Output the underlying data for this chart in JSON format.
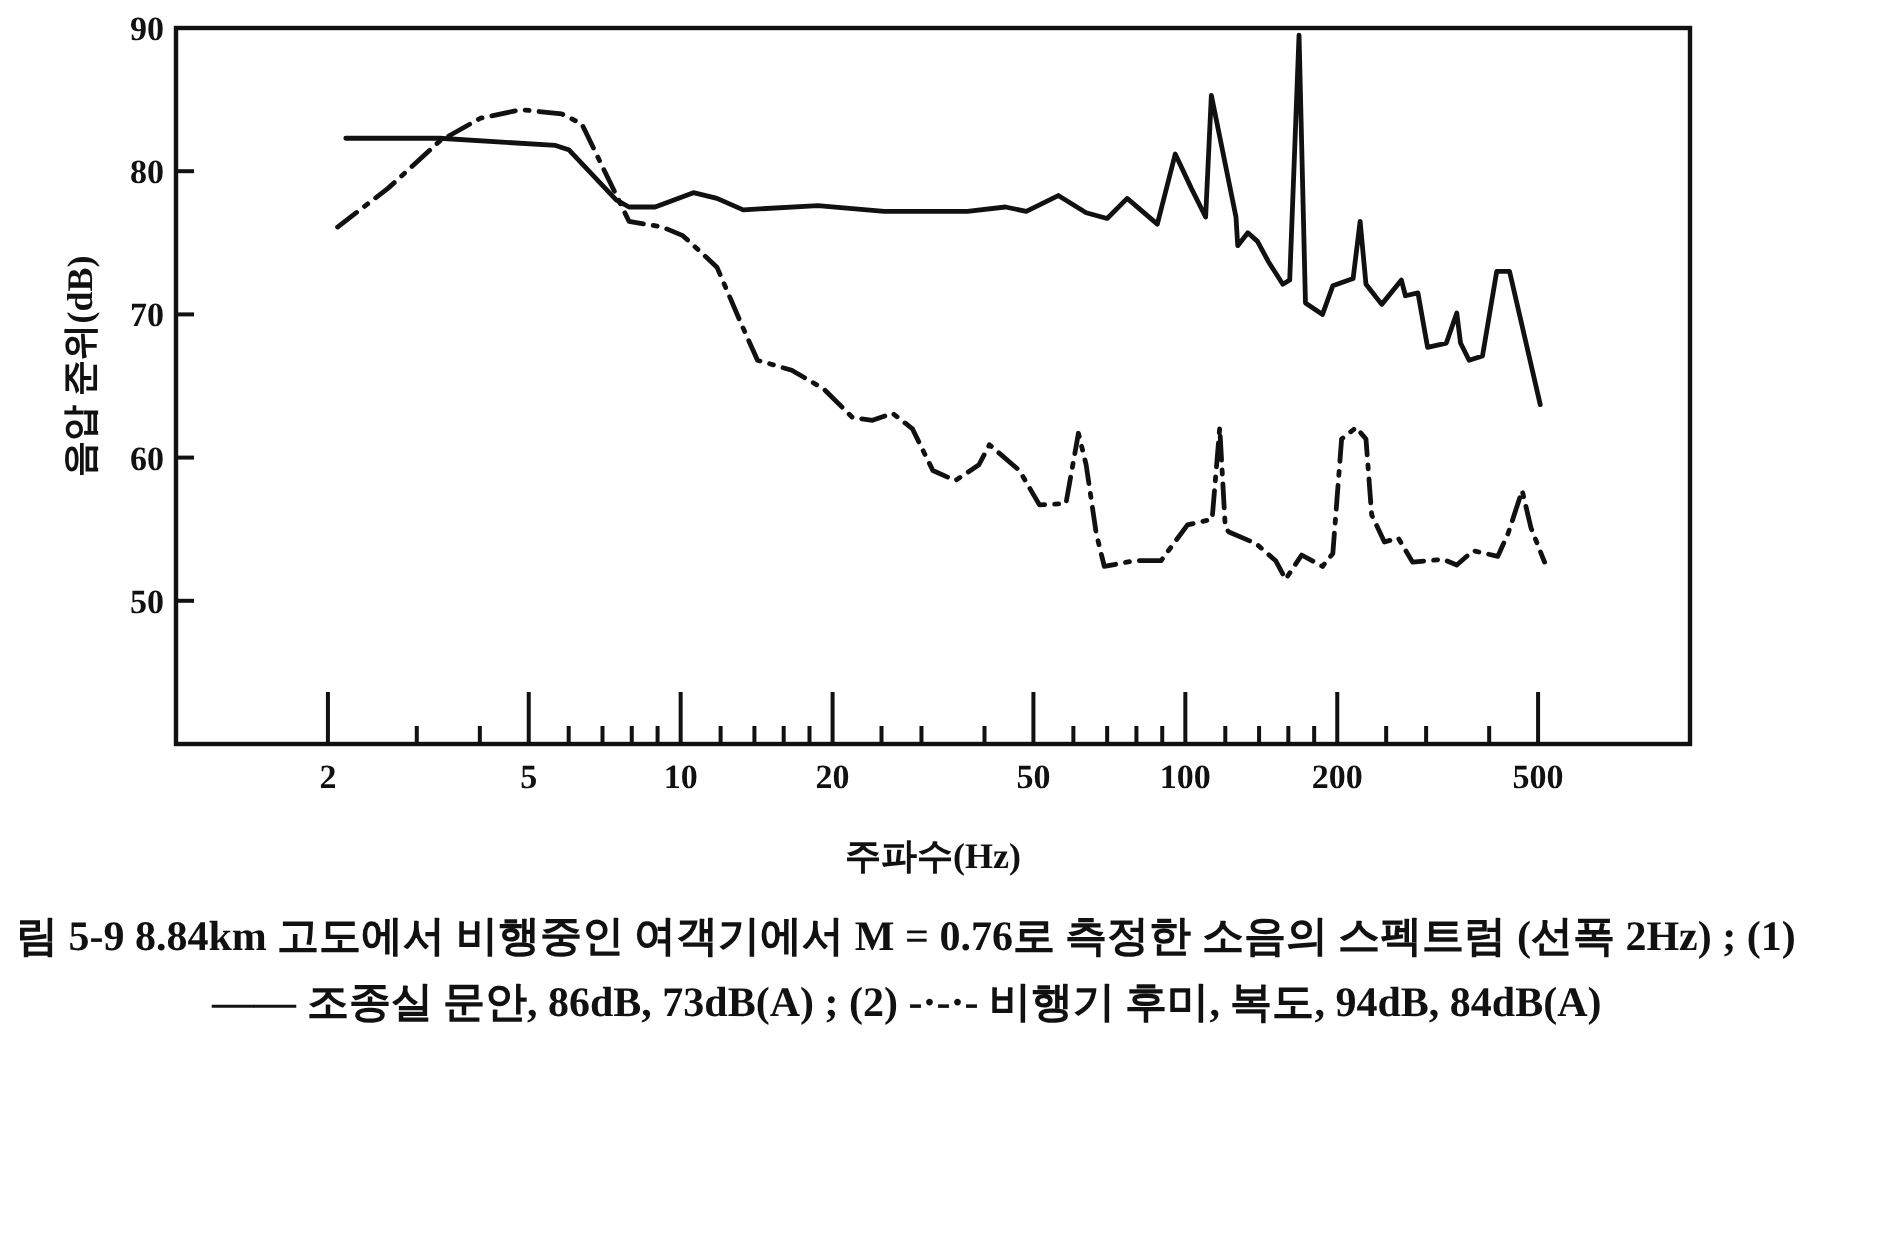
{
  "chart_data": {
    "type": "line",
    "xlabel": "주파수(Hz)",
    "ylabel": "음압 준위(dB)",
    "log": "x",
    "xlim": [
      1,
      1000
    ],
    "ylim": [
      40,
      90
    ],
    "xticks": [
      2,
      {
        "value": 3,
        "label": null
      },
      {
        "value": 4,
        "label": null
      },
      5,
      {
        "value": 6,
        "label": null
      },
      {
        "value": 7,
        "label": null
      },
      {
        "value": 8,
        "label": null
      },
      {
        "value": 9,
        "label": null
      },
      10,
      {
        "value": 12,
        "label": null
      },
      {
        "value": 14,
        "label": null
      },
      {
        "value": 16,
        "label": null
      },
      {
        "value": 18,
        "label": null
      },
      20,
      {
        "value": 25,
        "label": null
      },
      {
        "value": 30,
        "label": null
      },
      {
        "value": 40,
        "label": null
      },
      50,
      {
        "value": 60,
        "label": null
      },
      {
        "value": 70,
        "label": null
      },
      {
        "value": 80,
        "label": null
      },
      {
        "value": 90,
        "label": null
      },
      100,
      {
        "value": 120,
        "label": null
      },
      {
        "value": 140,
        "label": null
      },
      {
        "value": 160,
        "label": null
      },
      {
        "value": 180,
        "label": null
      },
      200,
      {
        "value": 250,
        "label": null
      },
      {
        "value": 300,
        "label": null
      },
      {
        "value": 400,
        "label": null
      },
      500
    ],
    "yticks": [
      50,
      60,
      70,
      80,
      90
    ],
    "grid": false,
    "series": [
      {
        "color": "#111111",
        "line_style": "solid",
        "x": [
          2.17,
          3.33,
          5.65,
          6.0,
          7.45,
          7.9,
          8.9,
          10.6,
          11.8,
          13.3,
          18.7,
          25.3,
          37,
          44,
          48.4,
          56,
          63.6,
          70,
          76.7,
          88,
          95.5,
          102.8,
          109.7,
          112.6,
          126,
          127,
          133,
          139,
          146,
          156,
          161,
          168,
          173,
          187,
          196,
          215,
          222,
          228,
          245,
          268,
          273,
          289,
          302,
          329,
          345,
          351,
          365,
          388,
          414,
          439,
          505
        ],
        "values": [
          82.3,
          82.3,
          81.8,
          81.5,
          78,
          77.5,
          77.5,
          78.5,
          78.1,
          77.3,
          77.6,
          77.2,
          77.2,
          77.5,
          77.2,
          78.3,
          77.1,
          76.7,
          78.1,
          76.3,
          81.2,
          78.8,
          76.8,
          85.3,
          76.8,
          74.8,
          75.7,
          75.1,
          73.7,
          72.1,
          72.4,
          89.5,
          70.8,
          70,
          72,
          72.5,
          76.5,
          72.1,
          70.7,
          72.4,
          71.3,
          71.5,
          67.7,
          68,
          70.1,
          68,
          66.8,
          67.1,
          73,
          73,
          63.7
        ]
      },
      {
        "color": "#111111",
        "line_style": "dashdot",
        "x": [
          2.09,
          2.63,
          3.33,
          4.01,
          4.83,
          5.81,
          6.37,
          6.98,
          7.9,
          9.2,
          10.1,
          11.8,
          13.2,
          14.2,
          16.6,
          19.2,
          21.9,
          24,
          26.3,
          28.8,
          31.6,
          35,
          39,
          40.9,
          46.9,
          51.4,
          58,
          61.4,
          63.6,
          66.6,
          69.1,
          79.4,
          89.5,
          101,
          113,
          117,
          120,
          122,
          138,
          151,
          158,
          170,
          187,
          196,
          204,
          218,
          228,
          234,
          248,
          264,
          282,
          324,
          345,
          372,
          416,
          436,
          465,
          484,
          515
        ],
        "values": [
          76.1,
          78.8,
          82.1,
          83.7,
          84.3,
          84,
          83.3,
          80.4,
          76.5,
          76.1,
          75.5,
          73.3,
          69.3,
          66.8,
          66.1,
          64.8,
          62.8,
          62.6,
          63.1,
          62,
          59.1,
          58.4,
          59.5,
          60.9,
          59.1,
          56.7,
          56.8,
          61.7,
          59.5,
          54.7,
          52.4,
          52.8,
          52.8,
          55.3,
          55.7,
          62.1,
          55.1,
          54.8,
          54,
          52.8,
          51.5,
          53.2,
          52.4,
          53.3,
          61.3,
          62.1,
          61.3,
          56,
          54.1,
          54.4,
          52.7,
          52.9,
          52.5,
          53.5,
          53.1,
          54.7,
          57.7,
          55.1,
          52.7
        ]
      }
    ],
    "annotations": [
      "림 5-9 8.84km 고도에서 비행중인 여객기에서 M = 0.76로 측정한 소음의 스펙트럼 (선폭 2Hz) ; (1) —— 조종실 문안, 86dB, 73dB(A) ; (2) -·-·- 비행기 후미, 복도, 94dB, 84dB(A)"
    ]
  }
}
